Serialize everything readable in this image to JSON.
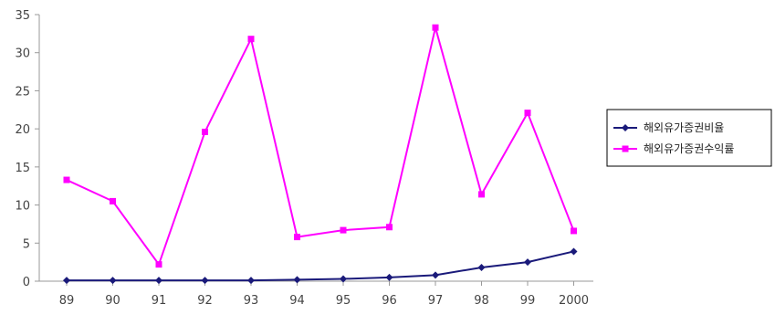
{
  "chart_data": {
    "type": "line",
    "categories": [
      "89",
      "90",
      "91",
      "92",
      "93",
      "94",
      "95",
      "96",
      "97",
      "98",
      "99",
      "2000"
    ],
    "series": [
      {
        "name": "해외유가증권비율",
        "color": "#1a1a7a",
        "marker": "diamond",
        "values": [
          0.1,
          0.1,
          0.1,
          0.1,
          0.1,
          0.2,
          0.3,
          0.5,
          0.8,
          1.8,
          2.5,
          3.9
        ]
      },
      {
        "name": "해외유가증권수익률",
        "color": "#ff00ff",
        "marker": "square",
        "values": [
          13.3,
          10.5,
          2.2,
          19.6,
          31.8,
          5.8,
          6.7,
          7.1,
          33.3,
          11.4,
          22.1,
          6.6
        ]
      }
    ],
    "ylim": [
      0,
      35
    ],
    "yticks": [
      "0",
      "5",
      "10",
      "15",
      "20",
      "25",
      "30",
      "35"
    ],
    "legend_position": "right",
    "grid": false
  }
}
